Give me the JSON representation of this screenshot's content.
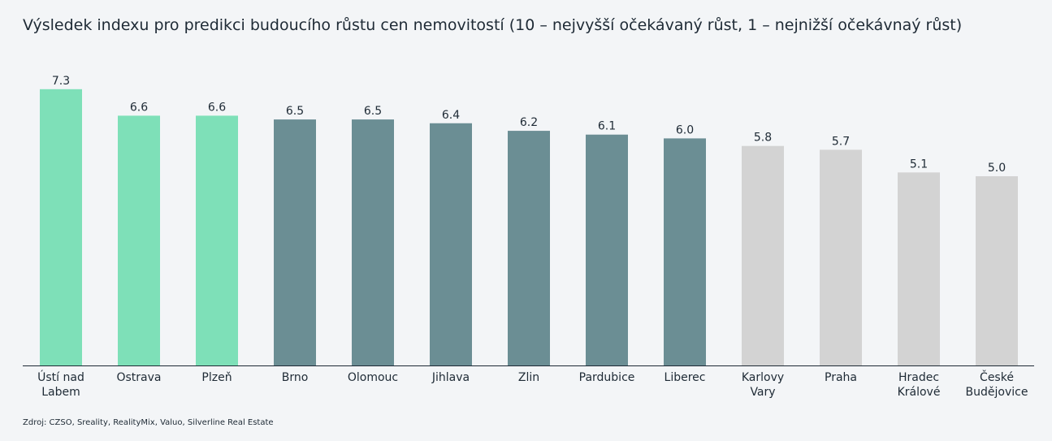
{
  "title": "Výsledek indexu pro predikci budoucího růstu cen nemovitostí (10 – nejvyšší očekávaný růst, 1 – nejnižší očekávnaý růst)",
  "source": "Zdroj: CZSO, Sreality, RealityMix, Valuo, Silverline Real Estate",
  "chart_data": {
    "type": "bar",
    "title": "Výsledek indexu pro predikci budoucího růstu cen nemovitostí (10 – nejvyšší očekávaný růst, 1 – nejnižší očekávnaý růst)",
    "xlabel": "",
    "ylabel": "",
    "ylim": [
      0,
      8
    ],
    "grid": false,
    "legend": "none",
    "categories": [
      [
        "Ústí nad",
        "Labem"
      ],
      [
        "Ostrava"
      ],
      [
        "Plzeň"
      ],
      [
        "Brno"
      ],
      [
        "Olomouc"
      ],
      [
        "Jihlava"
      ],
      [
        "Zlin"
      ],
      [
        "Pardubice"
      ],
      [
        "Liberec"
      ],
      [
        "Karlovy",
        "Vary"
      ],
      [
        "Praha"
      ],
      [
        "Hradec",
        "Králové"
      ],
      [
        "České",
        "Budějovice"
      ]
    ],
    "values": [
      7.3,
      6.6,
      6.6,
      6.5,
      6.5,
      6.4,
      6.2,
      6.1,
      6.0,
      5.8,
      5.7,
      5.1,
      5.0
    ],
    "value_labels": [
      "7.3",
      "6.6",
      "6.6",
      "6.5",
      "6.5",
      "6.4",
      "6.2",
      "6.1",
      "6.0",
      "5.8",
      "5.7",
      "5.1",
      "5.0"
    ],
    "bar_colors": [
      "#7ee0b8",
      "#7ee0b8",
      "#7ee0b8",
      "#6b8e94",
      "#6b8e94",
      "#6b8e94",
      "#6b8e94",
      "#6b8e94",
      "#6b8e94",
      "#d3d3d3",
      "#d3d3d3",
      "#d3d3d3",
      "#d3d3d3"
    ],
    "axis_color": "#1e2a35"
  }
}
